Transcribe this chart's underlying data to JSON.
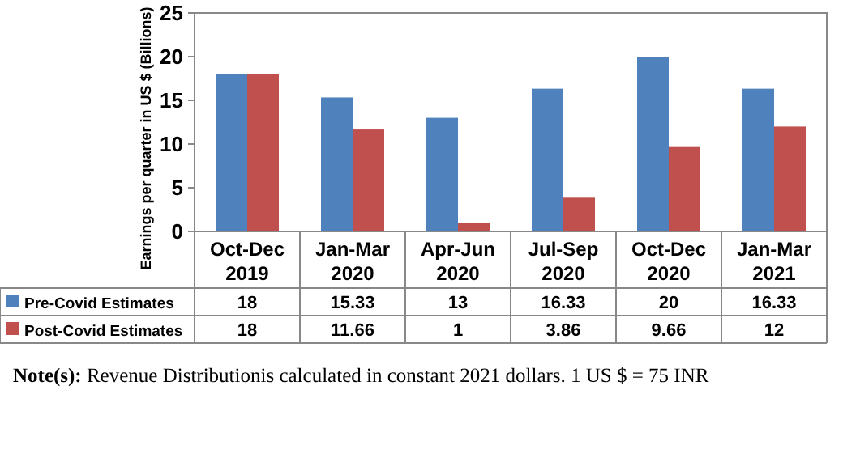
{
  "chart_data": {
    "type": "bar",
    "ylabel": "Earnings per quarter in US $ (Billions)",
    "categories": [
      "Oct-Dec 2019",
      "Jan-Mar 2020",
      "Apr-Jun 2020",
      "Jul-Sep 2020",
      "Oct-Dec 2020",
      "Jan-Mar 2021"
    ],
    "series": [
      {
        "name": "Pre-Covid Estimates",
        "color": "#4f81bd",
        "values": [
          18,
          15.33,
          13,
          16.33,
          20,
          16.33
        ]
      },
      {
        "name": "Post-Covid Estimates",
        "color": "#c0504d",
        "values": [
          18,
          11.66,
          1,
          3.86,
          9.66,
          12
        ]
      }
    ],
    "ylim": [
      0,
      25
    ],
    "yticks": [
      0,
      5,
      10,
      15,
      20,
      25
    ],
    "data_labels": true,
    "legend": "bottom",
    "annotations": [
      "Note(s): Revenue Distributionis calculated in constant 2021 dollars. 1 US $ = 75 INR"
    ]
  }
}
